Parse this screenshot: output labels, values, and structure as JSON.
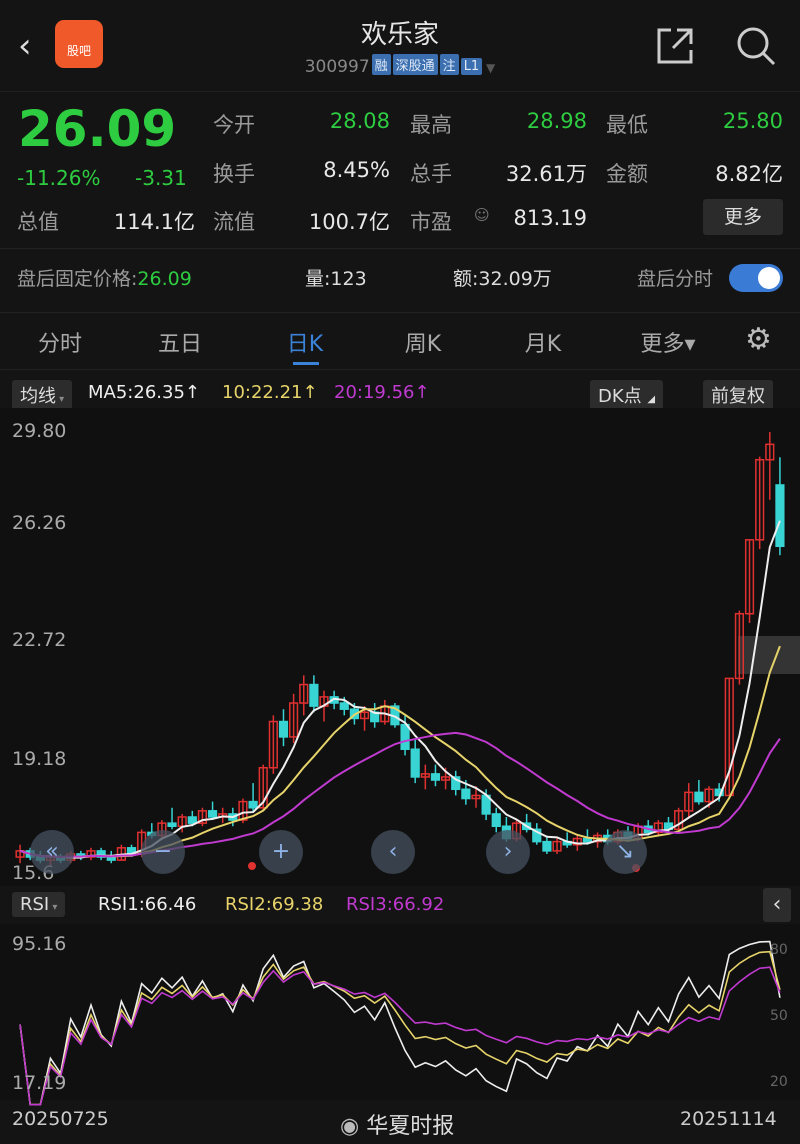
{
  "header": {
    "title": "欢乐家",
    "code": "300997",
    "tags": [
      "融",
      "深股通",
      "注",
      "L1"
    ]
  },
  "quote": {
    "price": "26.09",
    "change_pct": "-11.26%",
    "change": "-3.31",
    "fields": [
      {
        "label": "今开",
        "value": "28.08"
      },
      {
        "label": "最高",
        "value": "28.98"
      },
      {
        "label": "最低",
        "value": "25.80"
      },
      {
        "label": "换手",
        "value": "8.45%"
      },
      {
        "label": "总手",
        "value": "32.61万"
      },
      {
        "label": "金额",
        "value": "8.82亿"
      },
      {
        "label": "总值",
        "value": "114.1亿"
      },
      {
        "label": "流值",
        "value": "100.7亿"
      },
      {
        "label": "市盈",
        "value": "813.19"
      }
    ],
    "more_label": "更多"
  },
  "after_hours": {
    "fixed_price_label": "盘后固定价格:",
    "fixed_price": "26.09",
    "volume": "量:123",
    "amount": "额:32.09万",
    "toggle_label": "盘后分时",
    "toggle_on": true
  },
  "tabs": [
    "分时",
    "五日",
    "日K",
    "周K",
    "月K",
    "更多▾"
  ],
  "active_tab": "日K",
  "ma_legend": {
    "selector": "均线",
    "ma5": "MA5:26.35↑",
    "ma10": "10:22.21↑",
    "ma20": "20:19.56↑",
    "dk_label": "DK点",
    "adjust_label": "前复权"
  },
  "rsi_legend": {
    "selector": "RSI",
    "rsi1": "RSI1:66.46",
    "rsi2": "RSI2:69.38",
    "rsi3": "RSI3:66.92"
  },
  "colors": {
    "up": "#e03131",
    "down": "#38d4d4",
    "ma5": "#eeeeee",
    "ma10": "#e6d36a",
    "ma20": "#c03ad0",
    "accent": "#3b82d9"
  },
  "chart_data": {
    "type": "candlestick",
    "price_ticks": [
      "29.80",
      "26.26",
      "22.72",
      "19.18",
      "15.6"
    ],
    "rsi_ticks": [
      "95.16",
      "17.19"
    ],
    "rsi_right_ticks": [
      "80",
      "50",
      "20"
    ],
    "x_labels": [
      "20250725",
      "20251114"
    ],
    "ohlc": [
      [
        16.0,
        16.4,
        15.8,
        16.2
      ],
      [
        16.2,
        16.3,
        15.9,
        16.0
      ],
      [
        16.0,
        16.2,
        15.8,
        15.9
      ],
      [
        15.9,
        16.1,
        15.7,
        16.0
      ],
      [
        16.0,
        16.1,
        15.8,
        15.9
      ],
      [
        15.9,
        16.2,
        15.8,
        16.1
      ],
      [
        16.1,
        16.2,
        15.9,
        16.0
      ],
      [
        16.0,
        16.3,
        15.9,
        16.2
      ],
      [
        16.2,
        16.3,
        15.9,
        16.0
      ],
      [
        16.0,
        16.2,
        15.8,
        15.9
      ],
      [
        15.9,
        16.4,
        15.9,
        16.3
      ],
      [
        16.3,
        16.4,
        16.0,
        16.1
      ],
      [
        16.1,
        16.9,
        16.0,
        16.8
      ],
      [
        16.8,
        17.1,
        16.6,
        16.7
      ],
      [
        16.7,
        17.2,
        16.6,
        17.1
      ],
      [
        17.1,
        17.6,
        16.9,
        17.0
      ],
      [
        17.0,
        17.4,
        16.8,
        17.3
      ],
      [
        17.3,
        17.5,
        17.0,
        17.1
      ],
      [
        17.1,
        17.6,
        17.0,
        17.5
      ],
      [
        17.5,
        17.8,
        17.2,
        17.3
      ],
      [
        17.3,
        17.6,
        17.1,
        17.4
      ],
      [
        17.4,
        17.6,
        17.0,
        17.2
      ],
      [
        17.2,
        17.9,
        17.1,
        17.8
      ],
      [
        17.8,
        18.4,
        17.5,
        17.6
      ],
      [
        17.6,
        19.0,
        17.5,
        18.9
      ],
      [
        18.9,
        20.6,
        18.7,
        20.4
      ],
      [
        20.4,
        20.8,
        19.6,
        19.9
      ],
      [
        19.9,
        21.3,
        19.7,
        21.0
      ],
      [
        21.0,
        21.9,
        20.6,
        21.6
      ],
      [
        21.6,
        21.9,
        20.7,
        20.9
      ],
      [
        20.9,
        21.4,
        20.4,
        21.2
      ],
      [
        21.2,
        21.4,
        20.8,
        21.0
      ],
      [
        21.0,
        21.2,
        20.6,
        20.8
      ],
      [
        20.8,
        21.0,
        20.3,
        20.5
      ],
      [
        20.5,
        20.9,
        20.1,
        20.7
      ],
      [
        20.7,
        21.0,
        20.2,
        20.4
      ],
      [
        20.4,
        21.1,
        20.3,
        20.9
      ],
      [
        20.9,
        21.0,
        20.2,
        20.3
      ],
      [
        20.3,
        20.6,
        19.3,
        19.5
      ],
      [
        19.5,
        19.8,
        18.4,
        18.6
      ],
      [
        18.6,
        19.0,
        18.2,
        18.7
      ],
      [
        18.7,
        19.0,
        18.3,
        18.5
      ],
      [
        18.5,
        18.9,
        18.2,
        18.6
      ],
      [
        18.6,
        18.8,
        18.0,
        18.2
      ],
      [
        18.2,
        18.5,
        17.7,
        17.9
      ],
      [
        17.9,
        18.3,
        17.6,
        18.0
      ],
      [
        18.0,
        18.2,
        17.2,
        17.4
      ],
      [
        17.4,
        17.6,
        16.8,
        17.0
      ],
      [
        17.0,
        17.3,
        16.5,
        16.6
      ],
      [
        16.6,
        17.2,
        16.5,
        17.1
      ],
      [
        17.1,
        17.4,
        16.8,
        16.9
      ],
      [
        16.9,
        17.1,
        16.4,
        16.5
      ],
      [
        16.5,
        16.7,
        16.1,
        16.2
      ],
      [
        16.2,
        16.6,
        16.1,
        16.5
      ],
      [
        16.5,
        16.8,
        16.3,
        16.4
      ],
      [
        16.4,
        16.7,
        16.2,
        16.6
      ],
      [
        16.6,
        16.9,
        16.4,
        16.5
      ],
      [
        16.5,
        16.8,
        16.3,
        16.7
      ],
      [
        16.7,
        16.9,
        16.4,
        16.5
      ],
      [
        16.5,
        16.9,
        16.4,
        16.8
      ],
      [
        16.8,
        17.0,
        16.5,
        16.6
      ],
      [
        16.6,
        17.1,
        16.5,
        17.0
      ],
      [
        17.0,
        17.2,
        16.7,
        16.8
      ],
      [
        16.8,
        17.2,
        16.7,
        17.1
      ],
      [
        17.1,
        17.3,
        16.8,
        16.9
      ],
      [
        16.9,
        17.6,
        16.9,
        17.5
      ],
      [
        17.5,
        18.4,
        17.3,
        18.1
      ],
      [
        18.1,
        18.5,
        17.7,
        17.8
      ],
      [
        17.8,
        18.3,
        17.6,
        18.2
      ],
      [
        18.2,
        18.4,
        17.8,
        18.0
      ],
      [
        18.0,
        21.8,
        18.0,
        21.8
      ],
      [
        21.8,
        24.0,
        21.6,
        23.9
      ],
      [
        23.9,
        26.3,
        23.6,
        26.3
      ],
      [
        26.3,
        29.0,
        26.0,
        28.9
      ],
      [
        28.9,
        29.8,
        27.6,
        29.4
      ],
      [
        28.08,
        28.98,
        25.8,
        26.09
      ]
    ]
  },
  "watermark": "华夏时报"
}
